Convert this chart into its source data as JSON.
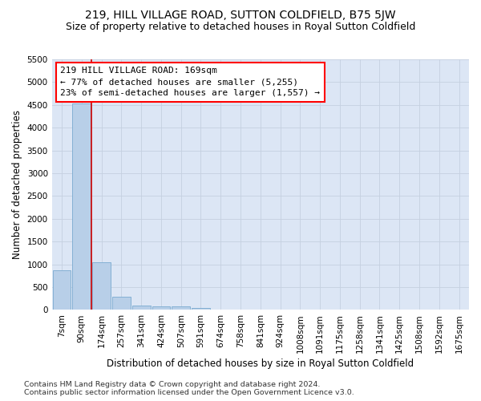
{
  "title": "219, HILL VILLAGE ROAD, SUTTON COLDFIELD, B75 5JW",
  "subtitle": "Size of property relative to detached houses in Royal Sutton Coldfield",
  "xlabel": "Distribution of detached houses by size in Royal Sutton Coldfield",
  "ylabel": "Number of detached properties",
  "footer1": "Contains HM Land Registry data © Crown copyright and database right 2024.",
  "footer2": "Contains public sector information licensed under the Open Government Licence v3.0.",
  "annotation_line1": "219 HILL VILLAGE ROAD: 169sqm",
  "annotation_line2": "← 77% of detached houses are smaller (5,255)",
  "annotation_line3": "23% of semi-detached houses are larger (1,557) →",
  "bar_color": "#b8cfe8",
  "bar_edge_color": "#7aaad0",
  "line_color": "#cc0000",
  "categories": [
    "7sqm",
    "90sqm",
    "174sqm",
    "257sqm",
    "341sqm",
    "424sqm",
    "507sqm",
    "591sqm",
    "674sqm",
    "758sqm",
    "841sqm",
    "924sqm",
    "1008sqm",
    "1091sqm",
    "1175sqm",
    "1258sqm",
    "1341sqm",
    "1425sqm",
    "1508sqm",
    "1592sqm",
    "1675sqm"
  ],
  "values": [
    870,
    4540,
    1050,
    285,
    90,
    85,
    75,
    45,
    10,
    0,
    0,
    0,
    0,
    0,
    0,
    0,
    0,
    0,
    0,
    0,
    0
  ],
  "ylim": [
    0,
    5500
  ],
  "yticks": [
    0,
    500,
    1000,
    1500,
    2000,
    2500,
    3000,
    3500,
    4000,
    4500,
    5000,
    5500
  ],
  "background_color": "#ffffff",
  "plot_bg_color": "#dce6f5",
  "grid_color": "#c5d0e0",
  "title_fontsize": 10,
  "subtitle_fontsize": 9,
  "axis_label_fontsize": 8.5,
  "tick_fontsize": 7.5,
  "annotation_fontsize": 8,
  "footer_fontsize": 6.8
}
